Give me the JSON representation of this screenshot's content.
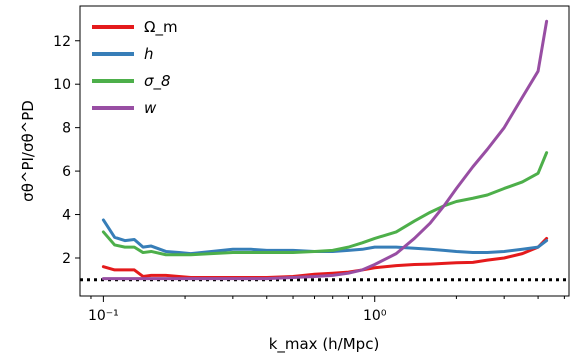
{
  "chart_data": {
    "type": "line",
    "xlabel": "k_max (h/Mpc)",
    "ylabel": "σθ^PI/σθ^PD",
    "xscale": "log",
    "xlim": [
      0.082,
      5.2
    ],
    "ylim": [
      0.25,
      13.6
    ],
    "x_ticks": [
      {
        "value": 0.1,
        "label": "10⁻¹"
      },
      {
        "value": 1,
        "label": "10⁰"
      }
    ],
    "y_ticks": [
      2,
      4,
      6,
      8,
      10,
      12
    ],
    "grid": false,
    "legend_position": "top-left",
    "reference_line": {
      "y": 1.0,
      "style": "dotted",
      "color": "#000000"
    },
    "series": [
      {
        "name": "Ω_m",
        "color": "#e41a1c",
        "points": [
          [
            0.1,
            1.6
          ],
          [
            0.11,
            1.45
          ],
          [
            0.12,
            1.45
          ],
          [
            0.13,
            1.45
          ],
          [
            0.14,
            1.15
          ],
          [
            0.15,
            1.2
          ],
          [
            0.17,
            1.2
          ],
          [
            0.19,
            1.15
          ],
          [
            0.21,
            1.1
          ],
          [
            0.25,
            1.1
          ],
          [
            0.3,
            1.1
          ],
          [
            0.35,
            1.1
          ],
          [
            0.4,
            1.1
          ],
          [
            0.5,
            1.15
          ],
          [
            0.6,
            1.25
          ],
          [
            0.7,
            1.3
          ],
          [
            0.8,
            1.35
          ],
          [
            0.9,
            1.45
          ],
          [
            1.0,
            1.55
          ],
          [
            1.2,
            1.65
          ],
          [
            1.4,
            1.7
          ],
          [
            1.6,
            1.72
          ],
          [
            1.8,
            1.75
          ],
          [
            2.0,
            1.78
          ],
          [
            2.3,
            1.8
          ],
          [
            2.6,
            1.9
          ],
          [
            3.0,
            2.0
          ],
          [
            3.5,
            2.2
          ],
          [
            4.0,
            2.5
          ],
          [
            4.3,
            2.9
          ]
        ]
      },
      {
        "name": "h",
        "color": "#377eb8",
        "points": [
          [
            0.1,
            3.75
          ],
          [
            0.11,
            2.95
          ],
          [
            0.12,
            2.8
          ],
          [
            0.13,
            2.85
          ],
          [
            0.14,
            2.5
          ],
          [
            0.15,
            2.55
          ],
          [
            0.17,
            2.3
          ],
          [
            0.19,
            2.25
          ],
          [
            0.21,
            2.2
          ],
          [
            0.25,
            2.3
          ],
          [
            0.3,
            2.4
          ],
          [
            0.35,
            2.4
          ],
          [
            0.4,
            2.35
          ],
          [
            0.5,
            2.35
          ],
          [
            0.6,
            2.3
          ],
          [
            0.7,
            2.3
          ],
          [
            0.8,
            2.35
          ],
          [
            0.9,
            2.4
          ],
          [
            1.0,
            2.5
          ],
          [
            1.2,
            2.5
          ],
          [
            1.4,
            2.45
          ],
          [
            1.6,
            2.4
          ],
          [
            1.8,
            2.35
          ],
          [
            2.0,
            2.3
          ],
          [
            2.3,
            2.25
          ],
          [
            2.6,
            2.25
          ],
          [
            3.0,
            2.3
          ],
          [
            3.5,
            2.4
          ],
          [
            4.0,
            2.5
          ],
          [
            4.3,
            2.8
          ]
        ]
      },
      {
        "name": "σ_8",
        "color": "#4daf4a",
        "points": [
          [
            0.1,
            3.2
          ],
          [
            0.11,
            2.6
          ],
          [
            0.12,
            2.5
          ],
          [
            0.13,
            2.5
          ],
          [
            0.14,
            2.25
          ],
          [
            0.15,
            2.3
          ],
          [
            0.17,
            2.15
          ],
          [
            0.19,
            2.15
          ],
          [
            0.21,
            2.15
          ],
          [
            0.25,
            2.2
          ],
          [
            0.3,
            2.25
          ],
          [
            0.35,
            2.25
          ],
          [
            0.4,
            2.25
          ],
          [
            0.5,
            2.25
          ],
          [
            0.6,
            2.3
          ],
          [
            0.7,
            2.35
          ],
          [
            0.8,
            2.5
          ],
          [
            0.9,
            2.7
          ],
          [
            1.0,
            2.9
          ],
          [
            1.2,
            3.2
          ],
          [
            1.4,
            3.7
          ],
          [
            1.6,
            4.1
          ],
          [
            1.8,
            4.4
          ],
          [
            2.0,
            4.6
          ],
          [
            2.3,
            4.75
          ],
          [
            2.6,
            4.9
          ],
          [
            3.0,
            5.2
          ],
          [
            3.5,
            5.5
          ],
          [
            4.0,
            5.9
          ],
          [
            4.3,
            6.85
          ]
        ]
      },
      {
        "name": "w",
        "color": "#984ea3",
        "points": [
          [
            0.1,
            1.05
          ],
          [
            0.12,
            1.05
          ],
          [
            0.15,
            1.05
          ],
          [
            0.2,
            1.05
          ],
          [
            0.25,
            1.05
          ],
          [
            0.3,
            1.05
          ],
          [
            0.35,
            1.05
          ],
          [
            0.4,
            1.05
          ],
          [
            0.5,
            1.1
          ],
          [
            0.6,
            1.15
          ],
          [
            0.7,
            1.2
          ],
          [
            0.8,
            1.3
          ],
          [
            0.9,
            1.45
          ],
          [
            1.0,
            1.7
          ],
          [
            1.2,
            2.2
          ],
          [
            1.4,
            2.9
          ],
          [
            1.6,
            3.6
          ],
          [
            1.8,
            4.4
          ],
          [
            2.0,
            5.2
          ],
          [
            2.3,
            6.2
          ],
          [
            2.6,
            7.0
          ],
          [
            3.0,
            8.0
          ],
          [
            3.5,
            9.4
          ],
          [
            4.0,
            10.6
          ],
          [
            4.3,
            12.9
          ]
        ]
      }
    ]
  }
}
